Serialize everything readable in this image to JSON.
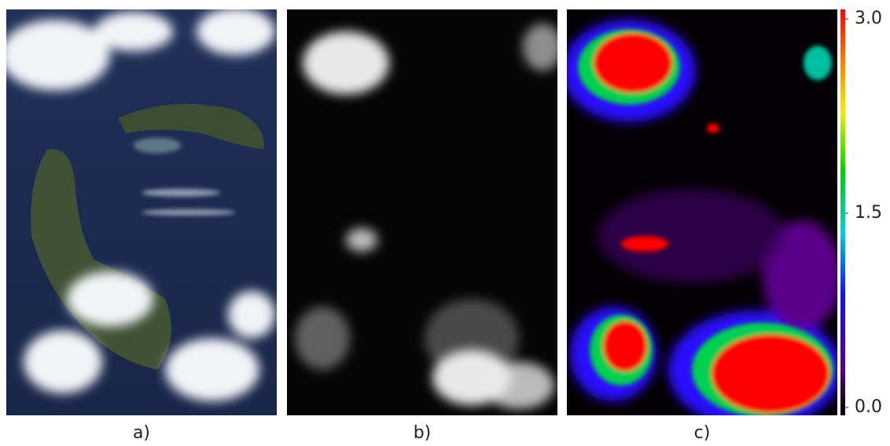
{
  "panels": [
    {
      "label": "a)"
    },
    {
      "label": "b)"
    },
    {
      "label": "c)"
    }
  ],
  "colorbar": {
    "ticks": [
      {
        "value": 3,
        "label": "3.0"
      },
      {
        "value": 1.5,
        "label": "1.5"
      },
      {
        "value": 0,
        "label": "0.0"
      }
    ]
  }
}
